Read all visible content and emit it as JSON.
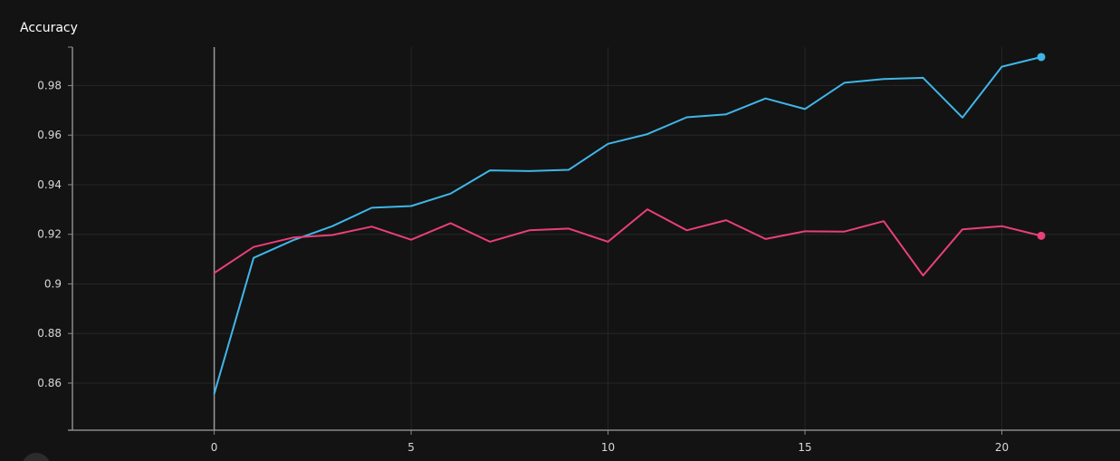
{
  "chart_data": {
    "type": "line",
    "title": "Accuracy",
    "xlabel": "",
    "ylabel": "",
    "xlim": [
      -3.6,
      23
    ],
    "ylim": [
      0.841,
      0.9955
    ],
    "x_ticks": [
      0,
      5,
      10,
      15,
      20
    ],
    "y_ticks": [
      0.86,
      0.88,
      0.9,
      0.92,
      0.94,
      0.96,
      0.98
    ],
    "y_tick_labels": [
      "0.86",
      "0.88",
      "0.9",
      "0.92",
      "0.94",
      "0.96",
      "0.98"
    ],
    "grid": true,
    "series": [
      {
        "color": "#3fb6e8",
        "x": [
          0,
          1,
          2,
          3,
          4,
          5,
          6,
          7,
          8,
          9,
          10,
          11,
          12,
          13,
          14,
          15,
          16,
          17,
          18,
          19,
          20,
          21
        ],
        "values": [
          0.8557,
          0.9105,
          0.9176,
          0.9233,
          0.9307,
          0.9314,
          0.9364,
          0.9458,
          0.9455,
          0.946,
          0.9565,
          0.9604,
          0.9672,
          0.9684,
          0.9748,
          0.9705,
          0.9811,
          0.9826,
          0.9831,
          0.9671,
          0.9876,
          0.9915
        ]
      },
      {
        "color": "#ea3f77",
        "x": [
          0,
          1,
          2,
          3,
          4,
          5,
          6,
          7,
          8,
          9,
          10,
          11,
          12,
          13,
          14,
          15,
          16,
          17,
          18,
          19,
          20,
          21
        ],
        "values": [
          0.9044,
          0.9149,
          0.9187,
          0.9197,
          0.9231,
          0.9178,
          0.9245,
          0.917,
          0.9216,
          0.9223,
          0.917,
          0.9301,
          0.9216,
          0.9257,
          0.9181,
          0.9212,
          0.9211,
          0.9253,
          0.9034,
          0.922,
          0.9233,
          0.9194
        ]
      }
    ]
  },
  "colors": {
    "background": "#131313",
    "grid": "#262626",
    "axis": "#8a8a8a",
    "tick_text": "#d8d8d8",
    "title": "#ffffff"
  }
}
